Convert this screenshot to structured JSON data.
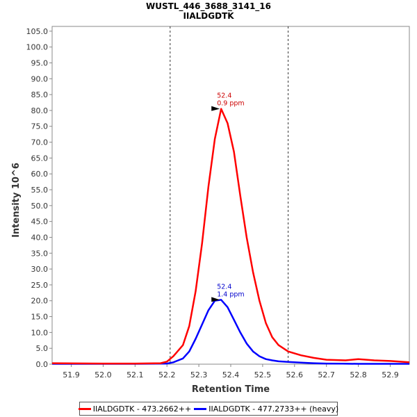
{
  "chart_data": {
    "type": "line",
    "title": "WUSTL_446_3688_3141_16",
    "subtitle": "IIALDGDTK",
    "xlabel": "Retention Time",
    "ylabel": "Intensity 10^6",
    "xlim": [
      51.84,
      52.96
    ],
    "ylim": [
      0,
      106.5
    ],
    "x_ticks": [
      "51.9",
      "52.0",
      "52.1",
      "52.2",
      "52.3",
      "52.4",
      "52.5",
      "52.6",
      "52.7",
      "52.8",
      "52.9"
    ],
    "x_tick_values": [
      51.9,
      52.0,
      52.1,
      52.2,
      52.3,
      52.4,
      52.5,
      52.6,
      52.7,
      52.8,
      52.9
    ],
    "y_ticks": [
      "0.0",
      "5.0",
      "10.0",
      "15.0",
      "20.0",
      "25.0",
      "30.0",
      "35.0",
      "40.0",
      "45.0",
      "50.0",
      "55.0",
      "60.0",
      "65.0",
      "70.0",
      "75.0",
      "80.0",
      "85.0",
      "90.0",
      "95.0",
      "100.0",
      "105.0"
    ],
    "y_tick_values": [
      0,
      5,
      10,
      15,
      20,
      25,
      30,
      35,
      40,
      45,
      50,
      55,
      60,
      65,
      70,
      75,
      80,
      85,
      90,
      95,
      100,
      105
    ],
    "integration_bounds": [
      52.21,
      52.58
    ],
    "grid": false,
    "legend_position": "bottom",
    "series": [
      {
        "name": "IIALDGDTK - 473.2662++",
        "color": "#ff0000",
        "x": [
          51.84,
          52.0,
          52.1,
          52.18,
          52.2,
          52.22,
          52.25,
          52.27,
          52.29,
          52.31,
          52.33,
          52.35,
          52.37,
          52.39,
          52.41,
          52.43,
          52.45,
          52.47,
          52.49,
          52.51,
          52.53,
          52.55,
          52.58,
          52.62,
          52.66,
          52.7,
          52.76,
          52.8,
          52.85,
          52.9,
          52.96
        ],
        "values": [
          0.3,
          0.2,
          0.2,
          0.3,
          0.8,
          2.5,
          6.0,
          12.0,
          23.0,
          38.0,
          56.0,
          71.0,
          80.5,
          76.0,
          67.0,
          53.0,
          40.0,
          29.0,
          20.0,
          13.0,
          8.5,
          6.0,
          4.0,
          2.8,
          2.0,
          1.4,
          1.2,
          1.6,
          1.2,
          1.0,
          0.6
        ]
      },
      {
        "name": "IIALDGDTK - 477.2733++ (heavy)",
        "color": "#0000ff",
        "x": [
          51.84,
          52.0,
          52.1,
          52.2,
          52.22,
          52.25,
          52.27,
          52.29,
          52.31,
          52.33,
          52.35,
          52.37,
          52.39,
          52.41,
          52.43,
          52.45,
          52.47,
          52.49,
          52.51,
          52.53,
          52.55,
          52.58,
          52.62,
          52.66,
          52.7,
          52.75,
          52.8,
          52.85,
          52.9,
          52.96
        ],
        "values": [
          0.1,
          0.1,
          0.1,
          0.2,
          0.6,
          1.8,
          4.0,
          8.0,
          12.5,
          17.0,
          20.0,
          20.3,
          18.0,
          14.0,
          10.0,
          6.5,
          4.0,
          2.5,
          1.6,
          1.2,
          0.9,
          0.7,
          0.5,
          0.3,
          0.2,
          0.15,
          0.1,
          0.1,
          0.1,
          0.1
        ]
      }
    ],
    "annotations": [
      {
        "series": 0,
        "x": 52.37,
        "y": 80.5,
        "label_rt": "52.4",
        "label_ppm": "0.9 ppm",
        "color": "#cc0000"
      },
      {
        "series": 1,
        "x": 52.37,
        "y": 20.3,
        "label_rt": "52.4",
        "label_ppm": "1.4 ppm",
        "color": "#0000cc"
      }
    ]
  }
}
